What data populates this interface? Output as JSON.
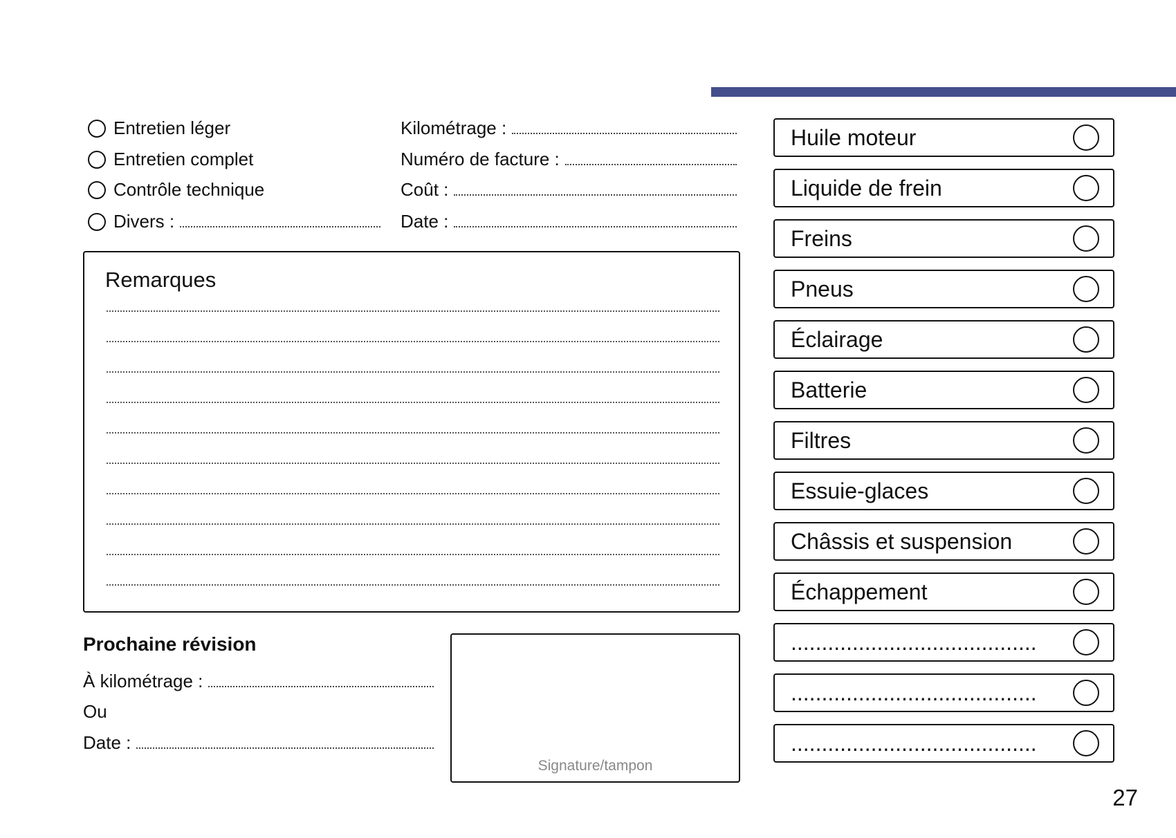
{
  "accent_color": "#454e8c",
  "service_types": [
    "Entretien léger",
    "Entretien complet",
    "Contrôle technique",
    "Divers :"
  ],
  "fields": [
    "Kilométrage :",
    "Numéro de facture :",
    "Coût :",
    "Date :"
  ],
  "remarks": {
    "title": "Remarques",
    "line_count": 10
  },
  "next_service": {
    "title": "Prochaine révision",
    "mileage_label": "À kilométrage :",
    "or_label": "Ou",
    "date_label": "Date :"
  },
  "signature_label": "Signature/tampon",
  "checklist": [
    "Huile moteur",
    "Liquide de frein",
    "Freins",
    "Pneus",
    "Éclairage",
    "Batterie",
    "Filtres",
    "Essuie-glaces",
    "Châssis et suspension",
    "Échappement",
    "........................................",
    "........................................",
    "........................................"
  ],
  "page_number": "27"
}
